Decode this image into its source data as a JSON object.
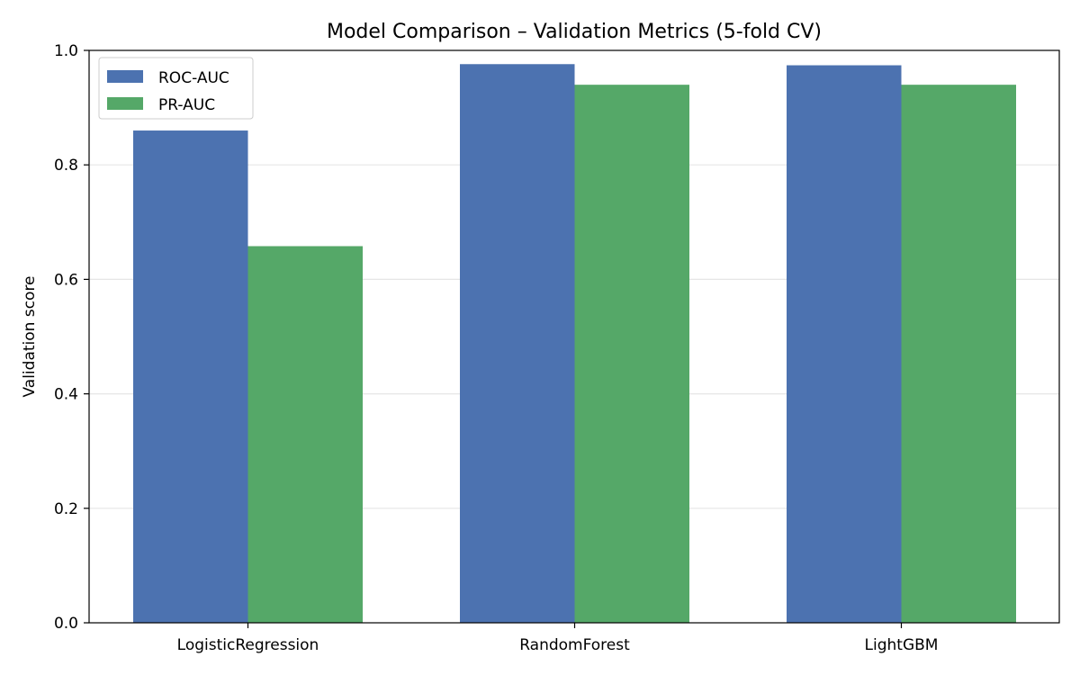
{
  "chart_data": {
    "type": "bar",
    "title": "Model Comparison – Validation Metrics (5-fold CV)",
    "xlabel": "",
    "ylabel": "Validation score",
    "categories": [
      "LogisticRegression",
      "RandomForest",
      "LightGBM"
    ],
    "series": [
      {
        "name": "ROC-AUC",
        "color": "#4c72b0",
        "values": [
          0.86,
          0.976,
          0.974
        ]
      },
      {
        "name": "PR-AUC",
        "color": "#55a868",
        "values": [
          0.658,
          0.94,
          0.94
        ]
      }
    ],
    "ylim": [
      0,
      1.0
    ],
    "yticks": [
      0.0,
      0.2,
      0.4,
      0.6,
      0.8,
      1.0
    ],
    "ytick_labels": [
      "0.0",
      "0.2",
      "0.4",
      "0.6",
      "0.8",
      "1.0"
    ],
    "grid": "y",
    "legend_position": "top-left"
  }
}
